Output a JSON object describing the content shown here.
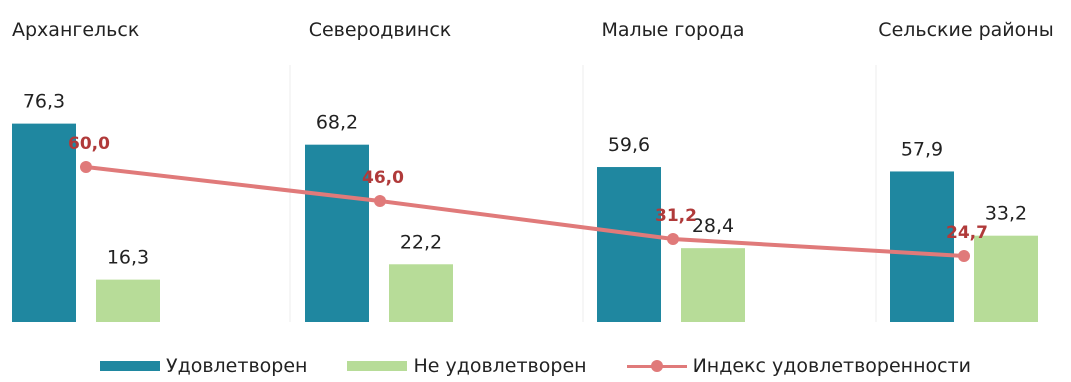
{
  "chart_data": {
    "type": "bar",
    "categories": [
      "Архангельск",
      "Северодвинск",
      "Малые города",
      "Сельские районы"
    ],
    "series": [
      {
        "name": "Удовлетворен",
        "kind": "bar",
        "color": "#1f87a0",
        "values": [
          76.3,
          68.2,
          59.6,
          57.9
        ],
        "labels": [
          "76,3",
          "68,2",
          "59,6",
          "57,9"
        ]
      },
      {
        "name": "Не удовлетворен",
        "kind": "bar",
        "color": "#b7dc98",
        "values": [
          16.3,
          22.2,
          28.4,
          33.2
        ],
        "labels": [
          "16,3",
          "22,2",
          "28,4",
          "33,2"
        ]
      },
      {
        "name": "Индекс удовлетворенности",
        "kind": "line",
        "color": "#e07a7a",
        "values": [
          60.0,
          46.0,
          31.2,
          24.7
        ],
        "labels": [
          "60,0",
          "46,0",
          "31,2",
          "24,7"
        ]
      }
    ],
    "title": "",
    "xlabel": "",
    "ylabel": "",
    "legend_position": "bottom",
    "grid": false
  }
}
